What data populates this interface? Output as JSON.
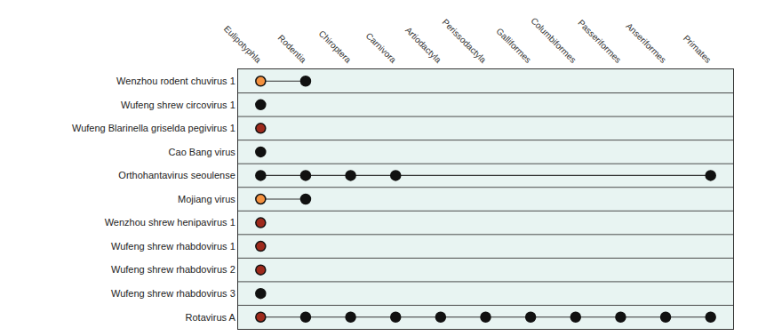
{
  "chart_data": {
    "type": "dot_matrix",
    "categories": [
      "Eulipotyphla",
      "Rodentia",
      "Chiroptera",
      "Carnivora",
      "Artiodactyla",
      "Perissodactyla",
      "Galliformes",
      "Columbiformes",
      "Passeriformes",
      "Anseriformes",
      "Primates"
    ],
    "series": [
      {
        "name": "Wenzhou rodent chuvirus 1",
        "hosts": [
          "Eulipotyphla",
          "Rodentia"
        ],
        "colors": [
          "#f4913f",
          "#111111"
        ]
      },
      {
        "name": "Wufeng shrew circovirus 1",
        "hosts": [
          "Eulipotyphla"
        ],
        "colors": [
          "#111111"
        ]
      },
      {
        "name": "Wufeng Blarinella griselda pegivirus 1",
        "hosts": [
          "Eulipotyphla"
        ],
        "colors": [
          "#9e2a1c"
        ]
      },
      {
        "name": "Cao Bang virus",
        "hosts": [
          "Eulipotyphla"
        ],
        "colors": [
          "#111111"
        ]
      },
      {
        "name": "Orthohantavirus seoulense",
        "hosts": [
          "Eulipotyphla",
          "Rodentia",
          "Chiroptera",
          "Carnivora",
          "Primates"
        ],
        "colors": [
          "#111111",
          "#111111",
          "#111111",
          "#111111",
          "#111111"
        ]
      },
      {
        "name": "Mojiang virus",
        "hosts": [
          "Eulipotyphla",
          "Rodentia"
        ],
        "colors": [
          "#f4913f",
          "#111111"
        ]
      },
      {
        "name": "Wenzhou shrew henipavirus 1",
        "hosts": [
          "Eulipotyphla"
        ],
        "colors": [
          "#9e2a1c"
        ]
      },
      {
        "name": "Wufeng shrew rhabdovirus 1",
        "hosts": [
          "Eulipotyphla"
        ],
        "colors": [
          "#9e2a1c"
        ]
      },
      {
        "name": "Wufeng shrew rhabdovirus 2",
        "hosts": [
          "Eulipotyphla"
        ],
        "colors": [
          "#9e2a1c"
        ]
      },
      {
        "name": "Wufeng shrew rhabdovirus 3",
        "hosts": [
          "Eulipotyphla"
        ],
        "colors": [
          "#111111"
        ]
      },
      {
        "name": "Rotavirus A",
        "hosts": [
          "Eulipotyphla",
          "Rodentia",
          "Chiroptera",
          "Carnivora",
          "Artiodactyla",
          "Perissodactyla",
          "Galliformes",
          "Columbiformes",
          "Passeriformes",
          "Anseriformes",
          "Primates"
        ],
        "colors": [
          "#9e2a1c",
          "#111111",
          "#111111",
          "#111111",
          "#111111",
          "#111111",
          "#111111",
          "#111111",
          "#111111",
          "#111111",
          "#111111"
        ]
      }
    ]
  }
}
